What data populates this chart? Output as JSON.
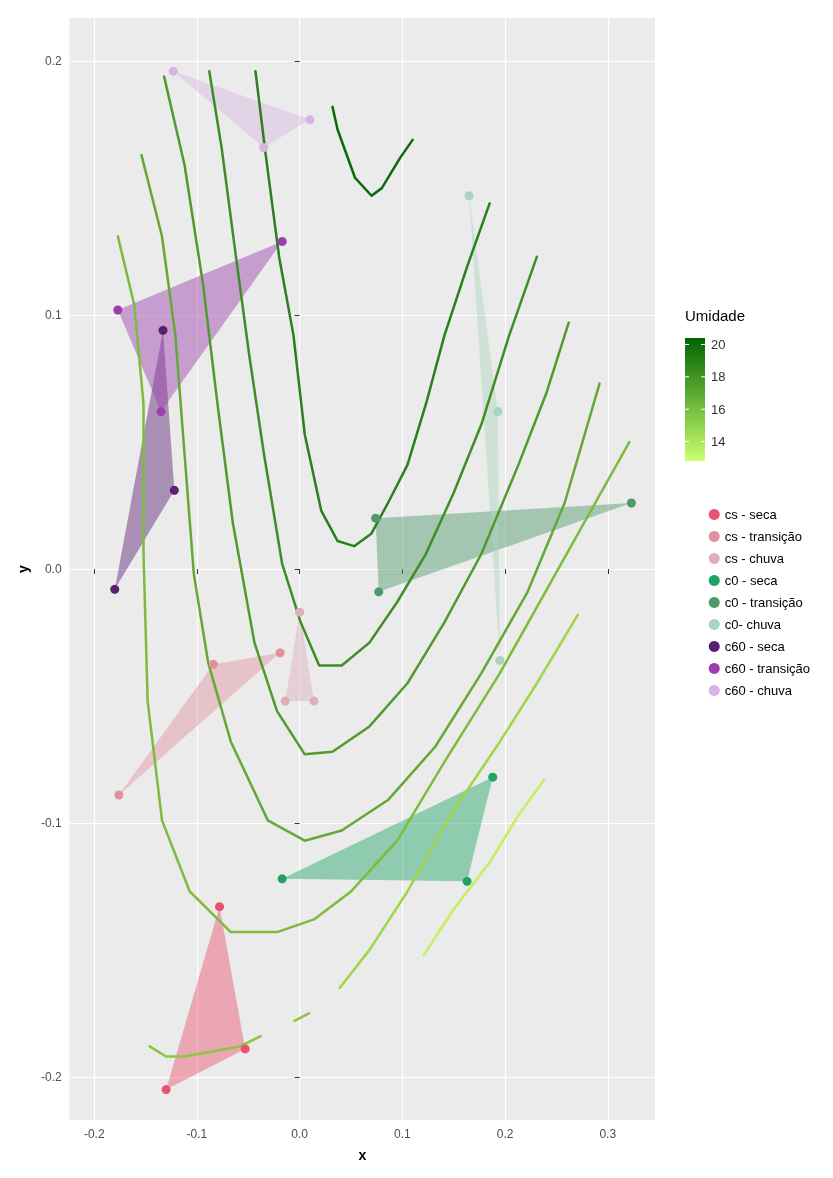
{
  "chart_data": {
    "type": "scatter",
    "xlabel": "x",
    "ylabel": "y",
    "clabel": "Umidade",
    "clim": [
      12.8,
      20.4
    ],
    "cticks": [
      14,
      16,
      18,
      20
    ],
    "xlim": [
      -0.224,
      0.346
    ],
    "ylim": [
      -0.217,
      0.217
    ],
    "xticks": [
      -0.2,
      -0.1,
      {
        "value": 0,
        "label": "0.0"
      },
      0.1,
      0.2,
      0.3
    ],
    "yticks": [
      -0.2,
      -0.1,
      {
        "value": 0,
        "label": "0.0"
      },
      0.1,
      0.2
    ],
    "grid": true,
    "legend": "right",
    "series": [
      {
        "type": "line",
        "color": "#0b6a0b",
        "x": [
          0.032,
          0.037,
          0.054,
          0.07,
          0.08,
          0.098,
          0.11
        ],
        "values": [
          0.182,
          0.173,
          0.154,
          0.147,
          0.15,
          0.162,
          0.169
        ]
      },
      {
        "type": "line",
        "color": "#2a7f1e",
        "x": [
          -0.043,
          -0.033,
          -0.02,
          -0.006,
          0.005,
          0.021,
          0.037,
          0.053,
          0.07,
          0.086,
          0.105,
          0.123,
          0.141,
          0.163,
          0.185
        ],
        "values": [
          0.196,
          0.163,
          0.123,
          0.092,
          0.053,
          0.023,
          0.011,
          0.009,
          0.014,
          0.026,
          0.041,
          0.065,
          0.092,
          0.119,
          0.144
        ]
      },
      {
        "type": "line",
        "color": "#3f8d28",
        "x": [
          -0.088,
          -0.076,
          -0.062,
          -0.049,
          -0.035,
          -0.017,
          0.001,
          0.019,
          0.041,
          0.068,
          0.095,
          0.123,
          0.15,
          0.177,
          0.204,
          0.231
        ],
        "values": [
          0.196,
          0.166,
          0.123,
          0.084,
          0.046,
          0.002,
          -0.021,
          -0.038,
          -0.038,
          -0.029,
          -0.013,
          0.006,
          0.03,
          0.057,
          0.092,
          0.123
        ]
      },
      {
        "type": "line",
        "color": "#52992e",
        "x": [
          -0.132,
          -0.112,
          -0.094,
          -0.08,
          -0.065,
          -0.044,
          -0.022,
          0.005,
          0.032,
          0.068,
          0.105,
          0.141,
          0.177,
          0.213,
          0.24,
          0.262
        ],
        "values": [
          0.194,
          0.159,
          0.112,
          0.065,
          0.018,
          -0.029,
          -0.056,
          -0.073,
          -0.072,
          -0.062,
          -0.045,
          -0.021,
          0.006,
          0.041,
          0.069,
          0.097
        ]
      },
      {
        "type": "line",
        "color": "#66a836",
        "x": [
          -0.154,
          -0.134,
          -0.121,
          -0.112,
          -0.103,
          -0.089,
          -0.067,
          -0.031,
          0.005,
          0.041,
          0.086,
          0.132,
          0.177,
          0.222,
          0.258,
          0.292
        ],
        "values": [
          0.163,
          0.131,
          0.092,
          0.045,
          -0.002,
          -0.037,
          -0.068,
          -0.099,
          -0.107,
          -0.103,
          -0.091,
          -0.07,
          -0.041,
          -0.009,
          0.026,
          0.073
        ]
      },
      {
        "type": "line",
        "color": "#7dbb3d",
        "x": [
          -0.177,
          -0.161,
          -0.152,
          -0.152,
          -0.148,
          -0.134,
          -0.107,
          -0.067,
          -0.022,
          0.014,
          0.05,
          0.095,
          0.141,
          0.195,
          0.249,
          0.321
        ],
        "values": [
          0.131,
          0.104,
          0.065,
          0.006,
          -0.052,
          -0.099,
          -0.127,
          -0.143,
          -0.143,
          -0.138,
          -0.127,
          -0.107,
          -0.076,
          -0.041,
          -0.002,
          0.05
        ]
      },
      {
        "type": "line",
        "color": "#8cc63f",
        "x": [
          -0.146,
          -0.13,
          -0.112,
          -0.085,
          -0.058,
          -0.038
        ],
        "values": [
          -0.188,
          -0.192,
          -0.192,
          -0.19,
          -0.188,
          -0.184
        ]
      },
      {
        "type": "line",
        "color": "#8cc63f",
        "x": [
          -0.005,
          0.009
        ],
        "values": [
          -0.178,
          -0.175
        ]
      },
      {
        "type": "line",
        "color": "#a0d548",
        "x": [
          0.039,
          0.068,
          0.105,
          0.15,
          0.195,
          0.231,
          0.271
        ],
        "values": [
          -0.165,
          -0.15,
          -0.127,
          -0.095,
          -0.068,
          -0.045,
          -0.018
        ]
      },
      {
        "type": "line",
        "color": "#c4f060",
        "x": [
          0.121,
          0.15,
          0.186,
          0.213,
          0.238
        ],
        "values": [
          -0.152,
          -0.134,
          -0.115,
          -0.097,
          -0.083
        ]
      },
      {
        "type": "area",
        "color": "#e8546f",
        "x": [
          -0.078,
          -0.053,
          -0.13
        ],
        "values": [
          -0.133,
          -0.189,
          -0.205
        ]
      },
      {
        "type": "area",
        "color": "#e0909f",
        "x": [
          -0.084,
          -0.019,
          -0.176
        ],
        "values": [
          -0.0375,
          -0.033,
          -0.089
        ]
      },
      {
        "type": "area",
        "color": "#dbb0b8",
        "x": [
          0.0,
          0.014,
          -0.014
        ],
        "values": [
          -0.017,
          -0.052,
          -0.052
        ]
      },
      {
        "type": "area",
        "color": "#1fa463",
        "x": [
          -0.017,
          0.188,
          0.163
        ],
        "values": [
          -0.122,
          -0.082,
          -0.123
        ]
      },
      {
        "type": "area",
        "color": "#4e9a6a",
        "x": [
          0.074,
          0.323,
          0.077
        ],
        "values": [
          0.02,
          0.026,
          -0.009
        ]
      },
      {
        "type": "area",
        "color": "#a8d5bb",
        "x": [
          0.165,
          0.193,
          0.195
        ],
        "values": [
          0.147,
          0.062,
          -0.036
        ]
      },
      {
        "type": "area",
        "color": "#5a1e73",
        "x": [
          -0.133,
          -0.122,
          -0.18
        ],
        "values": [
          0.094,
          0.031,
          -0.008
        ]
      },
      {
        "type": "area",
        "color": "#9b3fb0",
        "x": [
          -0.177,
          -0.017,
          -0.135
        ],
        "values": [
          0.102,
          0.129,
          0.062
        ]
      },
      {
        "type": "area",
        "color": "#d8b5e0",
        "x": [
          -0.123,
          0.01,
          -0.035
        ],
        "values": [
          0.196,
          0.177,
          0.166
        ]
      },
      {
        "name": "cs - seca",
        "color": "#e8546f",
        "x": [
          -0.078,
          -0.053,
          -0.13
        ],
        "values": [
          -0.133,
          -0.189,
          -0.205
        ]
      },
      {
        "name": "cs - transição",
        "color": "#e0909f",
        "x": [
          -0.084,
          -0.019,
          -0.176
        ],
        "values": [
          -0.0375,
          -0.033,
          -0.089
        ]
      },
      {
        "name": "cs - chuva",
        "color": "#dbb0b8",
        "x": [
          0.0,
          0.014,
          -0.014
        ],
        "values": [
          -0.017,
          -0.052,
          -0.052
        ]
      },
      {
        "name": "c0 - seca",
        "color": "#1fa463",
        "x": [
          -0.017,
          0.188,
          0.163
        ],
        "values": [
          -0.122,
          -0.082,
          -0.123
        ]
      },
      {
        "name": "c0 - transição",
        "color": "#4e9a6a",
        "x": [
          0.074,
          0.323,
          0.077
        ],
        "values": [
          0.02,
          0.026,
          -0.009
        ]
      },
      {
        "name": "c0- chuva",
        "color": "#a8d5bb",
        "x": [
          0.165,
          0.193,
          0.195
        ],
        "values": [
          0.147,
          0.062,
          -0.036
        ]
      },
      {
        "name": "c60 - seca",
        "color": "#5a1e73",
        "x": [
          -0.133,
          -0.122,
          -0.18
        ],
        "values": [
          0.094,
          0.031,
          -0.008
        ]
      },
      {
        "name": "c60 - transição",
        "color": "#9b3fb0",
        "x": [
          -0.177,
          -0.017,
          -0.135
        ],
        "values": [
          0.102,
          0.129,
          0.062
        ]
      },
      {
        "name": "c60 - chuva",
        "color": "#d8b5e0",
        "x": [
          -0.123,
          0.01,
          -0.035
        ],
        "values": [
          0.196,
          0.177,
          0.166
        ]
      }
    ]
  }
}
